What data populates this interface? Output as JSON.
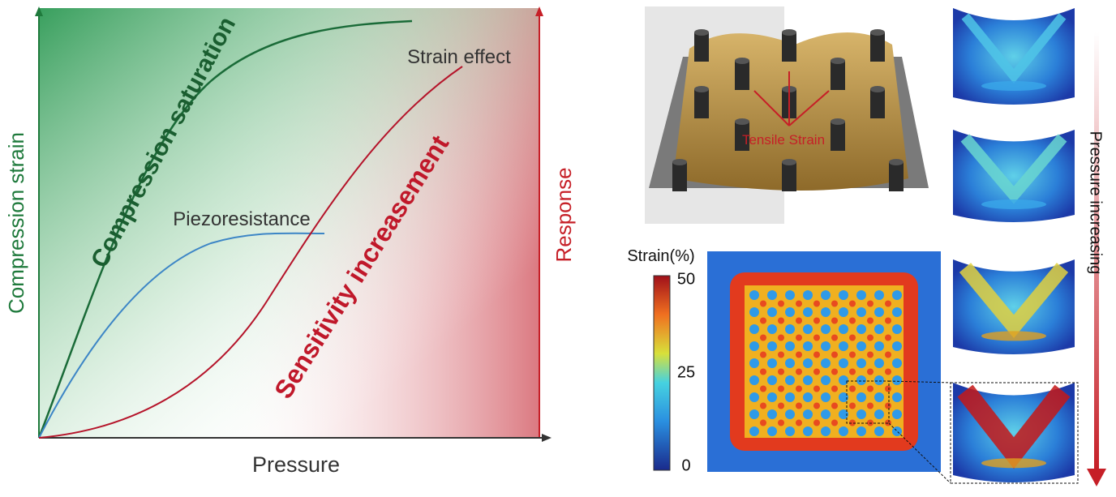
{
  "left_panel": {
    "y_axis_label": "Compression strain",
    "x_axis_label": "Pressure",
    "y2_axis_label": "Response",
    "curve_labels": {
      "compression": "Compression saturation",
      "piezo": "Piezoresistance",
      "strain": "Strain effect",
      "sensitivity": "Sensitivity increasement"
    }
  },
  "right_panel": {
    "annotation": "Tensile Strain",
    "colorbar_title": "Strain(%)",
    "colorbar_ticks": [
      50,
      25,
      0
    ],
    "arrow_label": "Pressure increasing"
  }
}
